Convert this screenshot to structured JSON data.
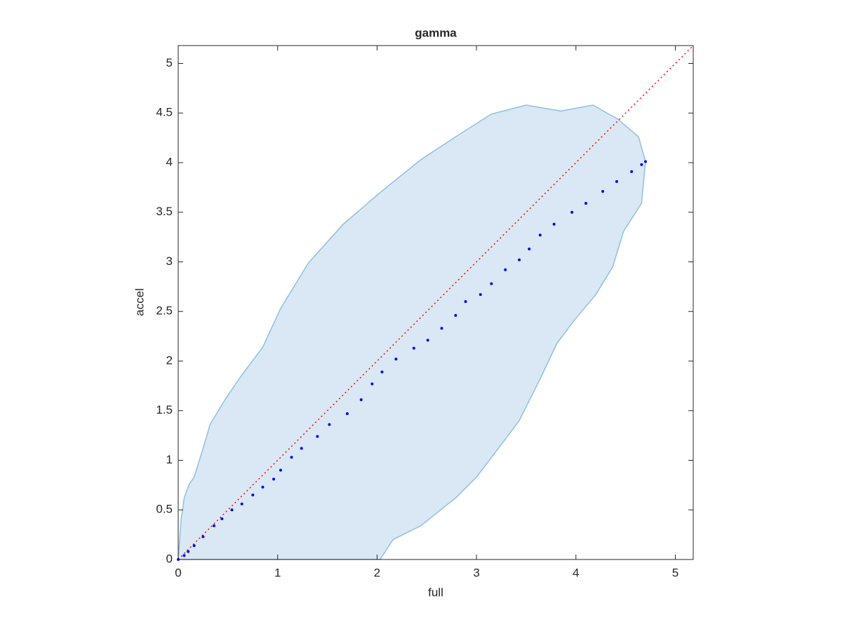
{
  "chart_data": {
    "type": "scatter",
    "title": "gamma",
    "xlabel": "full",
    "ylabel": "accel",
    "xlim": [
      0,
      5.18
    ],
    "ylim": [
      0,
      5.18
    ],
    "xticks": [
      0,
      1,
      2,
      3,
      4,
      5
    ],
    "yticks": [
      0,
      0.5,
      1,
      1.5,
      2,
      2.5,
      3,
      3.5,
      4,
      4.5,
      5
    ],
    "region": {
      "color": "#d9e8f4",
      "edgecolor": "#8fc0de",
      "x": [
        0,
        0.03,
        0.06,
        0.11,
        0.16,
        0.25,
        0.32,
        0.47,
        0.64,
        0.85,
        1.03,
        1.31,
        1.66,
        2.02,
        2.44,
        2.79,
        3.15,
        3.5,
        3.85,
        4.17,
        4.42,
        4.63,
        4.7,
        4.66,
        4.48,
        4.37,
        4.2,
        3.99,
        3.81,
        3.64,
        3.43,
        3.22,
        3.0,
        2.79,
        2.44,
        2.16,
        2.03
      ],
      "y": [
        0,
        0.41,
        0.62,
        0.76,
        0.83,
        1.12,
        1.36,
        1.61,
        1.86,
        2.14,
        2.53,
        2.99,
        3.38,
        3.69,
        4.03,
        4.26,
        4.49,
        4.58,
        4.52,
        4.58,
        4.44,
        4.26,
        4.01,
        3.59,
        3.31,
        2.95,
        2.67,
        2.42,
        2.18,
        1.82,
        1.4,
        1.12,
        0.83,
        0.62,
        0.34,
        0.2,
        0
      ]
    },
    "reference_line": {
      "color": "#ff0000",
      "x": [
        0,
        5.18
      ],
      "y": [
        0,
        5.18
      ]
    },
    "points": {
      "color": "#0000ff",
      "x": [
        0,
        0.06,
        0.1,
        0.16,
        0.25,
        0.36,
        0.44,
        0.54,
        0.64,
        0.75,
        0.85,
        0.96,
        1.03,
        1.14,
        1.24,
        1.4,
        1.52,
        1.7,
        1.84,
        1.95,
        2.05,
        2.19,
        2.37,
        2.51,
        2.65,
        2.79,
        2.89,
        3.04,
        3.15,
        3.29,
        3.43,
        3.53,
        3.64,
        3.78,
        3.96,
        4.1,
        4.27,
        4.41,
        4.56,
        4.66,
        4.7
      ],
      "y": [
        0,
        0.04,
        0.08,
        0.14,
        0.23,
        0.34,
        0.41,
        0.5,
        0.56,
        0.65,
        0.73,
        0.81,
        0.9,
        1.03,
        1.12,
        1.24,
        1.36,
        1.47,
        1.61,
        1.77,
        1.89,
        2.02,
        2.13,
        2.21,
        2.33,
        2.46,
        2.6,
        2.67,
        2.78,
        2.92,
        3.02,
        3.13,
        3.27,
        3.38,
        3.5,
        3.59,
        3.71,
        3.81,
        3.91,
        3.98,
        4.01
      ]
    }
  }
}
